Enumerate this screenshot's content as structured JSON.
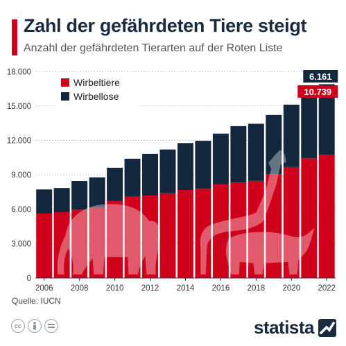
{
  "header": {
    "title": "Zahl der gefährdeten Tiere steigt",
    "subtitle": "Anzahl der gefährdeten Tierarten auf der Roten Liste"
  },
  "footer": {
    "source": "Quelle: IUCN",
    "brand": "statista",
    "license_icons": [
      "cc-icon",
      "person-icon",
      "equals-icon"
    ]
  },
  "colors": {
    "vertebrates": "#d0021b",
    "invertebrates": "#13283f",
    "accent": "#d0021b",
    "grid": "#c9cdd2"
  },
  "chart_data": {
    "type": "bar",
    "stacked": true,
    "categories": [
      "2006",
      "2007",
      "2008",
      "2009",
      "2010",
      "2011",
      "2012",
      "2013",
      "2014",
      "2015",
      "2016",
      "2017",
      "2018",
      "2019",
      "2020",
      "2021",
      "2022"
    ],
    "x_tick_labels": [
      "2006",
      "2008",
      "2010",
      "2012",
      "2014",
      "2016",
      "2018",
      "2020",
      "2022"
    ],
    "y_tick_labels": [
      "0",
      "3.000",
      "6.000",
      "9.000",
      "12.000",
      "15.000",
      "18.000"
    ],
    "ylim": [
      0,
      18500
    ],
    "grid": true,
    "legend_position": "top-left",
    "series": [
      {
        "name": "Wirbeltiere",
        "color": "#d0021b",
        "values": [
          5624,
          5742,
          5966,
          6142,
          6714,
          7108,
          7196,
          7389,
          7678,
          7781,
          8166,
          8335,
          8470,
          9050,
          9680,
          10440,
          10739
        ]
      },
      {
        "name": "Wirbellose",
        "color": "#13283f",
        "values": [
          2101,
          2108,
          2496,
          2639,
          2904,
          3297,
          3632,
          3819,
          4092,
          4183,
          4427,
          4912,
          4982,
          5170,
          5439,
          5985,
          6161
        ]
      }
    ],
    "annotations": [
      {
        "label": "6.161",
        "series": "Wirbellose"
      },
      {
        "label": "10.739",
        "series": "Wirbeltiere"
      }
    ]
  }
}
